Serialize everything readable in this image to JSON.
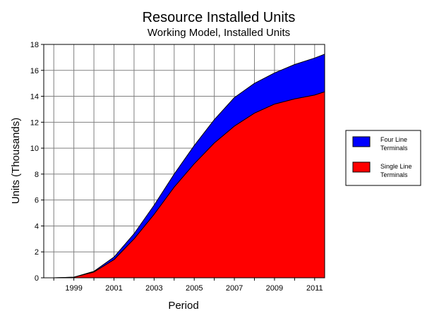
{
  "chart_data": {
    "type": "area",
    "stacked": true,
    "title": "Resource Installed Units",
    "subtitle": "Working Model, Installed Units",
    "xlabel": "Period",
    "ylabel": "Units  (Thousands)",
    "xlim": [
      1997.5,
      2011.5
    ],
    "ylim": [
      0,
      18
    ],
    "yticks": [
      0,
      2,
      4,
      6,
      8,
      10,
      12,
      14,
      16,
      18
    ],
    "xticks": [
      1999,
      2001,
      2003,
      2005,
      2007,
      2009,
      2011
    ],
    "grid": true,
    "legend_position": "right",
    "x": [
      1998,
      1999,
      2000,
      2001,
      2002,
      2003,
      2004,
      2005,
      2006,
      2007,
      2008,
      2009,
      2010,
      2011,
      2011.5
    ],
    "series": [
      {
        "name": "Single Line Terminals",
        "color": "#ff0000",
        "values": [
          0.0,
          0.05,
          0.45,
          1.4,
          3.0,
          4.9,
          7.0,
          8.8,
          10.4,
          11.7,
          12.7,
          13.4,
          13.8,
          14.1,
          14.35
        ]
      },
      {
        "name": "Four Line Terminals",
        "color": "#0000ff",
        "values": [
          0.0,
          0.0,
          0.05,
          0.2,
          0.4,
          0.7,
          1.0,
          1.4,
          1.8,
          2.2,
          2.3,
          2.4,
          2.65,
          2.85,
          2.9
        ]
      }
    ],
    "legend_labels": [
      {
        "line1": "Four Line",
        "line2": "Terminals",
        "color": "#0000ff"
      },
      {
        "line1": "Single Line",
        "line2": "Terminals",
        "color": "#ff0000"
      }
    ]
  }
}
